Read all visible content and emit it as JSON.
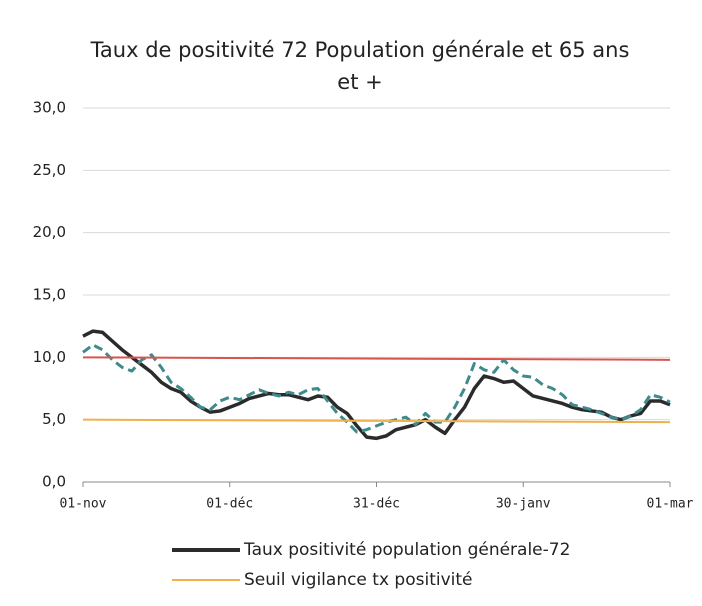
{
  "chart_data": {
    "type": "line",
    "title": "Taux de positivité 72 Population générale et 65 ans et +",
    "x": [
      0,
      2,
      4,
      6,
      8,
      10,
      12,
      14,
      16,
      18,
      20,
      22,
      24,
      26,
      28,
      30,
      32,
      34,
      36,
      38,
      40,
      42,
      44,
      46,
      48,
      50,
      52,
      54,
      56,
      58,
      60,
      62,
      64,
      66,
      68,
      70,
      72,
      74,
      76,
      78,
      80,
      82,
      84,
      86,
      88,
      90,
      92,
      94,
      96,
      98,
      100,
      102,
      104,
      106,
      108,
      110,
      112,
      114,
      116,
      118,
      120
    ],
    "xlim": [
      0,
      120
    ],
    "xticks": [
      {
        "value": 0,
        "label": "01-nov"
      },
      {
        "value": 30,
        "label": "01-déc"
      },
      {
        "value": 60,
        "label": "31-déc"
      },
      {
        "value": 90,
        "label": "30-janv"
      },
      {
        "value": 120,
        "label": "01-mar"
      }
    ],
    "ylim": [
      0,
      30
    ],
    "yticks": [
      {
        "value": 0,
        "label": "0,0"
      },
      {
        "value": 5,
        "label": "5,0"
      },
      {
        "value": 10,
        "label": "10,0"
      },
      {
        "value": 15,
        "label": "15,0"
      },
      {
        "value": 20,
        "label": "20,0"
      },
      {
        "value": 25,
        "label": "25,0"
      },
      {
        "value": 30,
        "label": "30,0"
      }
    ],
    "grid": true,
    "legend": "bottom",
    "series": [
      {
        "name": "Taux positivité population générale-72",
        "color": "#2b2b2b",
        "style": "solid",
        "values": [
          11.7,
          12.1,
          12.0,
          11.3,
          10.6,
          10.0,
          9.4,
          8.8,
          8.0,
          7.5,
          7.2,
          6.5,
          6.0,
          5.6,
          5.7,
          6.0,
          6.3,
          6.7,
          6.9,
          7.1,
          7.0,
          7.0,
          6.8,
          6.6,
          6.9,
          6.8,
          6.0,
          5.5,
          4.5,
          3.6,
          3.5,
          3.7,
          4.2,
          4.4,
          4.6,
          5.0,
          4.4,
          3.9,
          5.0,
          6.0,
          7.5,
          8.5,
          8.3,
          8.0,
          8.1,
          7.5,
          6.9,
          6.7,
          6.5,
          6.3,
          6.0,
          5.8,
          5.7,
          5.6,
          5.2,
          5.0,
          5.3,
          5.5,
          6.5,
          6.5,
          6.2
        ]
      },
      {
        "color": "#3f8a8c",
        "style": "dashed",
        "values": [
          10.4,
          11.0,
          10.6,
          9.8,
          9.2,
          8.9,
          9.8,
          10.2,
          9.2,
          8.0,
          7.5,
          6.8,
          6.0,
          5.8,
          6.5,
          6.8,
          6.6,
          7.0,
          7.4,
          7.1,
          6.9,
          7.2,
          7.0,
          7.4,
          7.5,
          6.5,
          5.5,
          4.8,
          4.0,
          4.2,
          4.5,
          4.8,
          5.0,
          5.2,
          4.6,
          5.5,
          4.8,
          4.8,
          6.0,
          7.5,
          9.5,
          9.0,
          8.8,
          9.8,
          9.0,
          8.5,
          8.4,
          7.8,
          7.5,
          7.0,
          6.2,
          6.0,
          5.8,
          5.5,
          5.2,
          5.0,
          5.3,
          5.8,
          7.0,
          6.8,
          6.4
        ]
      },
      {
        "color": "#d9534f",
        "style": "solid",
        "x": [
          0,
          120
        ],
        "values": [
          10,
          9.8
        ]
      },
      {
        "name": "Seuil vigilance tx positivité",
        "color": "#f0b04a",
        "style": "solid",
        "x": [
          0,
          120
        ],
        "values": [
          5,
          4.8
        ]
      }
    ]
  }
}
